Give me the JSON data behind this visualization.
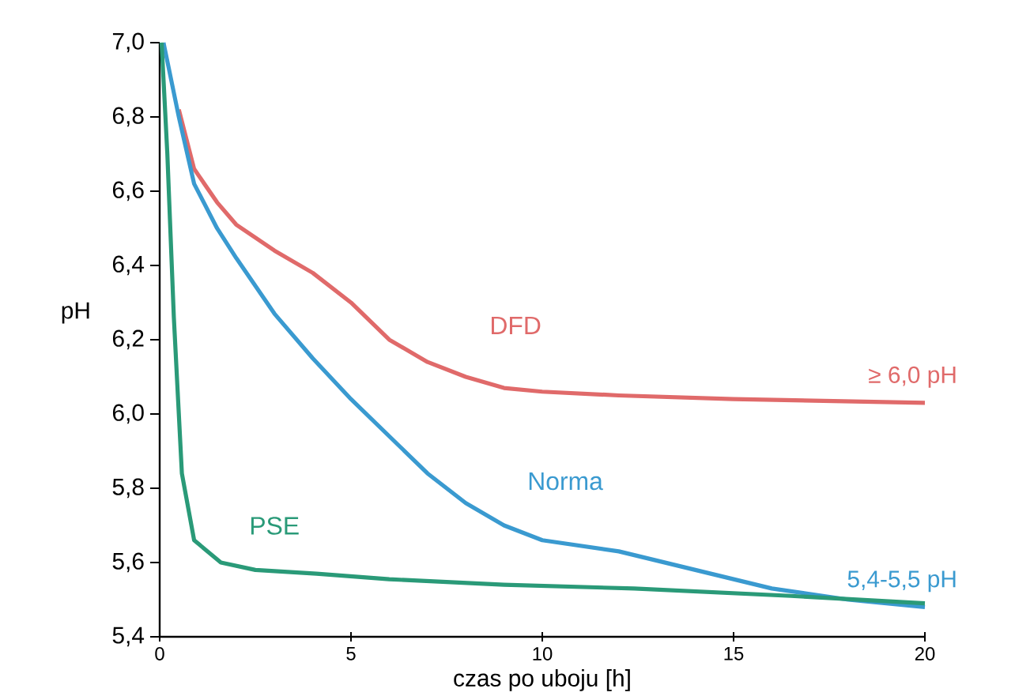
{
  "chart_data": {
    "type": "line",
    "xlabel": "czas po uboju [h]",
    "ylabel": "pH",
    "xlim": [
      0,
      20
    ],
    "xticks": [
      0,
      5,
      10,
      15,
      20
    ],
    "ylim": [
      5.4,
      7.0
    ],
    "yticks": [
      {
        "value": 5.4,
        "label": "5,4"
      },
      {
        "value": 5.6,
        "label": "5,6"
      },
      {
        "value": 5.8,
        "label": "5,8"
      },
      {
        "value": 6.0,
        "label": "6,0"
      },
      {
        "value": 6.2,
        "label": "6,2"
      },
      {
        "value": 6.4,
        "label": "6,4"
      },
      {
        "value": 6.6,
        "label": "6,6"
      },
      {
        "value": 6.8,
        "label": "6,8"
      },
      {
        "value": 7.0,
        "label": "7,0"
      }
    ],
    "grid": false,
    "marker": "none",
    "line_style": "solid",
    "series": [
      {
        "name": "DFD",
        "color": "#e06a6a",
        "x": [
          0.5,
          0.9,
          1.5,
          2,
          3,
          4,
          5,
          6,
          7,
          8,
          9,
          10,
          12,
          15,
          20
        ],
        "values": [
          6.82,
          6.66,
          6.57,
          6.51,
          6.44,
          6.38,
          6.3,
          6.2,
          6.14,
          6.1,
          6.07,
          6.06,
          6.05,
          6.04,
          6.03
        ]
      },
      {
        "name": "Norma",
        "color": "#3a9ad0",
        "x": [
          0.1,
          0.5,
          0.9,
          1.5,
          2,
          3,
          4,
          5,
          6,
          7,
          8,
          9,
          10,
          12,
          14,
          16,
          18,
          20
        ],
        "values": [
          7.0,
          6.8,
          6.62,
          6.5,
          6.42,
          6.27,
          6.15,
          6.04,
          5.94,
          5.84,
          5.76,
          5.7,
          5.66,
          5.63,
          5.58,
          5.53,
          5.5,
          5.48
        ]
      },
      {
        "name": "PSE",
        "color": "#2a9a78",
        "x": [
          0.05,
          0.2,
          0.37,
          0.58,
          0.9,
          1.6,
          2.5,
          4.1,
          6,
          9,
          12.4,
          16.5,
          20
        ],
        "values": [
          7.0,
          6.7,
          6.26,
          5.84,
          5.66,
          5.6,
          5.58,
          5.57,
          5.555,
          5.54,
          5.53,
          5.51,
          5.49
        ]
      }
    ],
    "annotations": [
      {
        "text": "≥ 6,0 pH",
        "x": 20,
        "y": 6.03
      },
      {
        "text": "5,4-5,5 pH",
        "x": 20,
        "y": 5.48
      }
    ]
  }
}
